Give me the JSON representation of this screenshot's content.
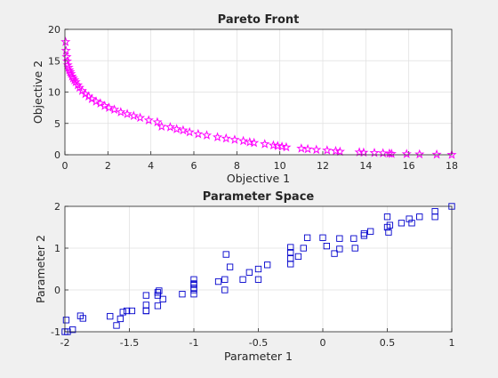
{
  "chart_data": [
    {
      "type": "scatter",
      "title": "Pareto Front",
      "xlabel": "Objective 1",
      "ylabel": "Objective 2",
      "xlim": [
        0,
        18
      ],
      "ylim": [
        0,
        20
      ],
      "xticks": [
        0,
        2,
        4,
        6,
        8,
        10,
        12,
        14,
        16,
        18
      ],
      "yticks": [
        0,
        5,
        10,
        15,
        20
      ],
      "grid": true,
      "marker": "star",
      "color": "#ff00ff",
      "series": [
        {
          "x": [
            0.03,
            0.05,
            0.08,
            0.1,
            0.13,
            0.17,
            0.2,
            0.24,
            0.28,
            0.33,
            0.38,
            0.44,
            0.5,
            0.6,
            0.68,
            0.8,
            0.95,
            1.1,
            1.25,
            1.45,
            1.65,
            1.85,
            2.05,
            2.3,
            2.6,
            2.9,
            3.2,
            3.5,
            3.9,
            4.3,
            4.5,
            4.9,
            5.2,
            5.5,
            5.8,
            6.2,
            6.6,
            7.1,
            7.5,
            7.9,
            8.3,
            8.6,
            8.8,
            9.3,
            9.7,
            9.9,
            10.1,
            10.3,
            11.0,
            11.3,
            11.7,
            12.2,
            12.6,
            12.8,
            13.7,
            13.9,
            14.4,
            14.8,
            15.1,
            15.2,
            15.9,
            16.5,
            17.3,
            18.0
          ],
          "y": [
            18.0,
            16.6,
            15.6,
            14.9,
            14.3,
            13.9,
            13.5,
            13.2,
            12.9,
            12.5,
            12.2,
            11.9,
            11.6,
            11.1,
            10.7,
            10.2,
            9.7,
            9.3,
            8.9,
            8.5,
            8.2,
            7.8,
            7.5,
            7.2,
            6.8,
            6.5,
            6.2,
            5.9,
            5.5,
            5.2,
            4.5,
            4.4,
            4.1,
            3.9,
            3.6,
            3.3,
            3.1,
            2.8,
            2.6,
            2.4,
            2.2,
            2.0,
            1.9,
            1.7,
            1.5,
            1.4,
            1.3,
            1.2,
            1.0,
            0.9,
            0.8,
            0.7,
            0.6,
            0.5,
            0.4,
            0.35,
            0.3,
            0.25,
            0.2,
            0.15,
            0.12,
            0.08,
            0.04,
            0.0
          ]
        }
      ]
    },
    {
      "type": "scatter",
      "title": "Parameter Space",
      "xlabel": "Parameter 1",
      "ylabel": "Parameter 2",
      "xlim": [
        -2,
        1
      ],
      "ylim": [
        -1,
        2
      ],
      "xticks": [
        -2,
        -1.5,
        -1,
        -0.5,
        0,
        0.5,
        1
      ],
      "xticklabels": [
        "-2",
        "-1.5",
        "-1",
        "-0.5",
        "0",
        "0.5",
        "1"
      ],
      "yticks": [
        -1,
        0,
        1,
        2
      ],
      "yticklabels": [
        "-1",
        "0",
        "1",
        "2"
      ],
      "grid": true,
      "marker": "square",
      "color": "#0000cc",
      "series": [
        {
          "x": [
            -2.0,
            -1.99,
            -1.98,
            -1.94,
            -1.88,
            -1.86,
            -1.65,
            -1.6,
            -1.57,
            -1.55,
            -1.52,
            -1.48,
            -1.37,
            -1.37,
            -1.37,
            -1.37,
            -1.28,
            -1.28,
            -1.28,
            -1.27,
            -1.24,
            -1.09,
            -1.0,
            -1.0,
            -1.0,
            -1.0,
            -1.0,
            -1.0,
            -0.81,
            -0.76,
            -0.76,
            -0.75,
            -0.72,
            -0.62,
            -0.57,
            -0.5,
            -0.5,
            -0.43,
            -0.25,
            -0.25,
            -0.25,
            -0.25,
            -0.19,
            -0.15,
            -0.12,
            0.0,
            0.03,
            0.09,
            0.13,
            0.13,
            0.24,
            0.25,
            0.32,
            0.32,
            0.37,
            0.5,
            0.5,
            0.51,
            0.52,
            0.61,
            0.67,
            0.69,
            0.75,
            0.87,
            0.87,
            1.0
          ],
          "y": [
            -1.0,
            -0.72,
            -1.0,
            -0.95,
            -0.62,
            -0.68,
            -0.63,
            -0.85,
            -0.69,
            -0.53,
            -0.5,
            -0.5,
            -0.36,
            -0.13,
            -0.5,
            -0.5,
            -0.06,
            -0.13,
            -0.38,
            -0.02,
            -0.22,
            -0.1,
            0.25,
            0.13,
            0.0,
            -0.1,
            0.15,
            0.05,
            0.2,
            0.0,
            0.25,
            0.85,
            0.55,
            0.25,
            0.42,
            0.5,
            0.25,
            0.6,
            0.75,
            0.62,
            0.9,
            1.02,
            0.8,
            1.0,
            1.25,
            1.25,
            1.05,
            0.87,
            0.98,
            1.23,
            1.23,
            1.0,
            1.35,
            1.3,
            1.4,
            1.75,
            1.5,
            1.38,
            1.55,
            1.6,
            1.7,
            1.6,
            1.75,
            1.75,
            1.88,
            2.0
          ]
        }
      ]
    }
  ]
}
